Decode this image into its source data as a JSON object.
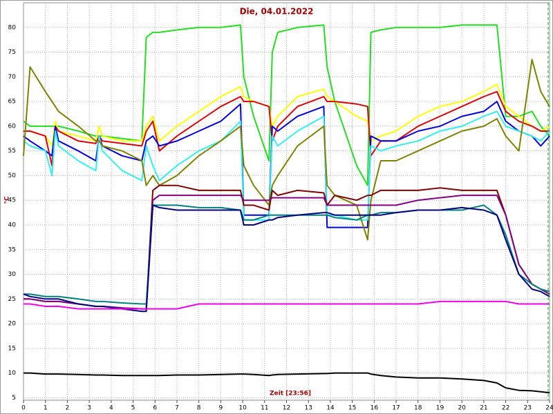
{
  "chart_data": {
    "type": "line",
    "title": "Die, 04.01.2022",
    "xlabel": "Zeit [23:56]",
    "ylabel": "°C",
    "x": [
      0,
      0.3,
      1,
      1.3,
      1.45,
      1.6,
      2.5,
      3.3,
      3.45,
      3.6,
      4.5,
      5.4,
      5.6,
      5.9,
      6.2,
      7,
      8,
      9,
      9.9,
      10.05,
      10.5,
      11.2,
      11.35,
      11.6,
      12.5,
      13.7,
      13.85,
      14.2,
      15.2,
      15.7,
      15.85,
      16.3,
      17,
      18,
      19,
      20,
      21,
      21.6,
      22,
      22.6,
      23.2,
      23.6,
      24
    ],
    "xlim": [
      0,
      24
    ],
    "xticks": [
      0,
      1,
      2,
      3,
      4,
      5,
      6,
      7,
      8,
      9,
      10,
      11,
      12,
      13,
      14,
      15,
      16,
      17,
      18,
      19,
      20,
      21,
      22,
      23,
      24
    ],
    "ylim": [
      4.5,
      85
    ],
    "yticks": [
      5,
      10,
      15,
      20,
      25,
      30,
      35,
      40,
      45,
      50,
      55,
      60,
      65,
      70,
      75,
      80
    ],
    "grid": true,
    "series": [
      {
        "color": "#22dd22",
        "values": [
          61,
          60,
          60,
          60,
          60,
          60,
          59,
          58,
          58,
          58,
          57.5,
          57,
          78,
          79,
          79,
          79.5,
          80,
          80,
          80.5,
          70,
          62,
          53,
          75,
          79,
          80,
          80.5,
          72,
          65,
          52,
          48,
          79,
          79.5,
          80,
          80,
          80,
          80.5,
          80.5,
          80.5,
          62,
          62,
          63,
          60,
          58
        ]
      },
      {
        "color": "#ffff00",
        "values": [
          59,
          59,
          58,
          56,
          61,
          59,
          58,
          57,
          60,
          58,
          57,
          57,
          60,
          62,
          57,
          60,
          63,
          66,
          68,
          66,
          65,
          64,
          60,
          62,
          66,
          67.5,
          66,
          65,
          62,
          61,
          57,
          58,
          59,
          62,
          64,
          65,
          67,
          68.5,
          64,
          62,
          60,
          59,
          60
        ]
      },
      {
        "color": "#dd0000",
        "values": [
          59,
          59,
          58,
          52,
          60,
          59,
          57,
          56.5,
          58,
          57,
          56.5,
          56,
          59,
          61,
          55,
          58,
          61,
          64,
          66,
          65,
          65,
          64,
          57,
          60,
          64,
          66,
          65,
          65,
          64.5,
          64,
          54,
          57,
          57,
          60,
          62,
          64,
          66,
          67,
          63,
          61,
          60,
          59,
          59
        ]
      },
      {
        "color": "#0000dd",
        "values": [
          58,
          57,
          55,
          54,
          60,
          57,
          55,
          53,
          58,
          56,
          54,
          53,
          57,
          58,
          56,
          57,
          59,
          61,
          64.5,
          42,
          42,
          42,
          60,
          59,
          62,
          64,
          39.5,
          39.5,
          39.5,
          39.5,
          58,
          57,
          57,
          59,
          60,
          62,
          63,
          65,
          61,
          59,
          58,
          56,
          58
        ]
      },
      {
        "color": "#33eeee",
        "values": [
          57,
          56,
          55,
          50,
          59,
          56,
          53,
          51,
          58,
          55,
          51,
          49,
          56,
          52,
          49,
          52,
          55,
          57,
          61,
          41,
          41,
          41,
          58,
          56,
          59,
          62,
          42,
          42,
          41,
          41,
          56,
          55,
          56,
          57,
          59,
          60,
          62,
          63,
          60,
          59,
          58,
          57,
          59
        ]
      },
      {
        "color": "#808000",
        "values": [
          54,
          72,
          67,
          65,
          64,
          63,
          60,
          57,
          57,
          56,
          55,
          53,
          48,
          50,
          48,
          50,
          54,
          57,
          60,
          52,
          48,
          44,
          48,
          50,
          56,
          60,
          48,
          46,
          44,
          37,
          45,
          53,
          53,
          55,
          57,
          59,
          60,
          61.5,
          58,
          55,
          73.5,
          67,
          64
        ]
      },
      {
        "color": "#800000",
        "values": [
          25,
          25,
          24.5,
          24.5,
          24.5,
          24.5,
          24,
          23.5,
          23.5,
          23.5,
          23.2,
          23,
          23,
          47,
          48,
          48,
          47,
          47,
          47,
          44,
          44,
          43,
          47,
          46,
          47,
          46.5,
          44,
          46,
          45,
          46,
          46,
          47,
          47,
          47,
          47.5,
          47,
          47,
          47,
          42,
          32,
          28,
          27,
          26
        ]
      },
      {
        "color": "#800080",
        "values": [
          25,
          25,
          24.5,
          24.5,
          24.5,
          24.5,
          24,
          23.5,
          23.5,
          23.5,
          23.2,
          23,
          23,
          45,
          46,
          46,
          46,
          46,
          46,
          45,
          45,
          45,
          45.5,
          45.5,
          45.5,
          45.5,
          44,
          44,
          44,
          44,
          44,
          44,
          44,
          45,
          45.5,
          46,
          46,
          46,
          42,
          32,
          28,
          27,
          26
        ]
      },
      {
        "color": "#008080",
        "values": [
          26,
          26,
          25.5,
          25.5,
          25.5,
          25.5,
          25,
          24.5,
          24.5,
          24.5,
          24.2,
          24,
          24,
          44,
          44,
          44,
          43.5,
          43.5,
          43,
          41,
          41,
          42,
          42,
          42,
          42,
          42,
          42,
          41.5,
          41,
          42,
          42,
          42.5,
          42.5,
          43,
          43,
          43,
          44,
          42,
          38,
          30,
          28,
          27,
          26.5
        ]
      },
      {
        "color": "#000080",
        "values": [
          26,
          25.5,
          25,
          25,
          25,
          25,
          24,
          23.5,
          23.5,
          23.5,
          23,
          22.5,
          22.5,
          44,
          43.5,
          43,
          43,
          43,
          43,
          40,
          40,
          41,
          41,
          41.5,
          42,
          42.5,
          42.5,
          42,
          42,
          42,
          42,
          42,
          42.5,
          43,
          43,
          43.5,
          43,
          42,
          37,
          30,
          27,
          26.5,
          25.5
        ]
      },
      {
        "color": "#ee00ee",
        "values": [
          24,
          24,
          23.5,
          23.5,
          23.5,
          23.5,
          23,
          23,
          23,
          23,
          23,
          23,
          23,
          23,
          23,
          23,
          24,
          24,
          24,
          24,
          24,
          24,
          24,
          24,
          24,
          24,
          24,
          24,
          24,
          24,
          24,
          24,
          24,
          24,
          24.5,
          24.5,
          24.5,
          24.5,
          24.5,
          24,
          24,
          24,
          24
        ]
      },
      {
        "color": "#000000",
        "values": [
          10,
          10,
          9.8,
          9.8,
          9.8,
          9.8,
          9.7,
          9.6,
          9.6,
          9.6,
          9.5,
          9.5,
          9.5,
          9.5,
          9.5,
          9.6,
          9.6,
          9.7,
          9.8,
          9.8,
          9.7,
          9.5,
          9.6,
          9.7,
          9.8,
          9.9,
          9.9,
          10,
          10,
          10,
          9.8,
          9.5,
          9.2,
          9,
          9,
          8.8,
          8.5,
          8,
          7,
          6.5,
          6.4,
          6.2,
          6
        ]
      }
    ]
  }
}
